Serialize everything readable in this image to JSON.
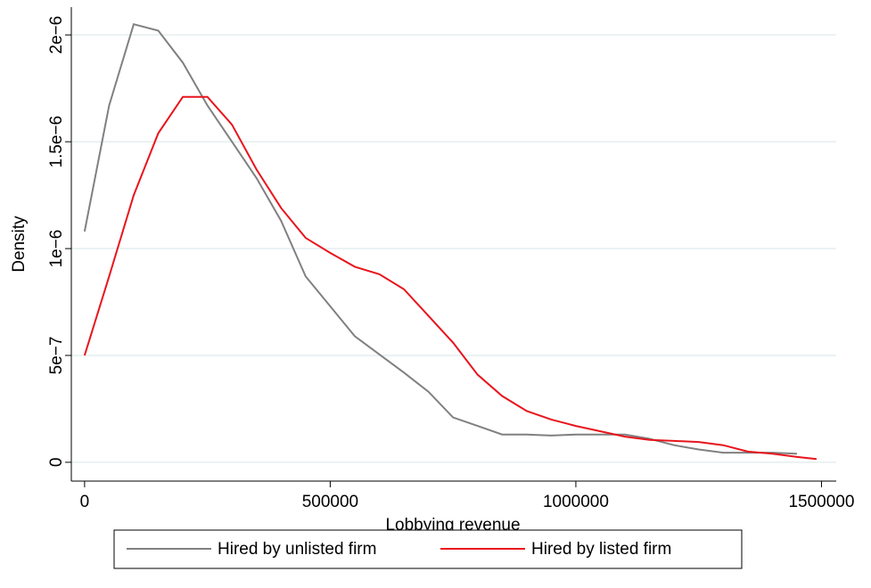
{
  "chart_data": {
    "type": "line",
    "xlabel": "Lobbying revenue",
    "ylabel": "Density",
    "x": [
      0,
      50000,
      100000,
      150000,
      200000,
      250000,
      300000,
      350000,
      400000,
      450000,
      500000,
      550000,
      600000,
      650000,
      700000,
      750000,
      800000,
      850000,
      900000,
      950000,
      1000000,
      1050000,
      1100000,
      1150000,
      1200000,
      1250000,
      1300000,
      1350000,
      1400000,
      1450000,
      1490000
    ],
    "series": [
      {
        "name": "Hired by unlisted firm",
        "color": "#808080",
        "values": [
          1.08e-06,
          1.67e-06,
          2.05e-06,
          2.02e-06,
          1.87e-06,
          1.67e-06,
          1.5e-06,
          1.33e-06,
          1.13e-06,
          8.7e-07,
          7.3e-07,
          5.9e-07,
          5.05e-07,
          4.2e-07,
          3.3e-07,
          2.1e-07,
          1.7e-07,
          1.3e-07,
          1.3e-07,
          1.25e-07,
          1.3e-07,
          1.3e-07,
          1.3e-07,
          1.1e-07,
          8e-08,
          6e-08,
          4.5e-08,
          4.5e-08,
          4.5e-08,
          4e-08,
          null
        ]
      },
      {
        "name": "Hired by listed firm",
        "color": "#e8141c",
        "values": [
          5e-07,
          8.7e-07,
          1.25e-06,
          1.54e-06,
          1.71e-06,
          1.71e-06,
          1.58e-06,
          1.37e-06,
          1.19e-06,
          1.05e-06,
          9.8e-07,
          9.15e-07,
          8.8e-07,
          8.1e-07,
          6.85e-07,
          5.6e-07,
          4.1e-07,
          3.1e-07,
          2.4e-07,
          2e-07,
          1.7e-07,
          1.45e-07,
          1.2e-07,
          1.05e-07,
          1e-07,
          9.5e-08,
          8e-08,
          5e-08,
          4e-08,
          2.5e-08,
          1.5e-08
        ]
      }
    ],
    "xlim": [
      -27000,
      1530000
    ],
    "ylim": [
      -8.8e-08,
      2.13e-06
    ],
    "xticks": [
      0,
      500000,
      1000000,
      1500000
    ],
    "yticks": [
      0,
      {
        "value": 5e-07,
        "label": "5e−7"
      },
      {
        "value": 1e-06,
        "label": "1e−6"
      },
      {
        "value": 1.5e-06,
        "label": "1.5e−6"
      },
      {
        "value": 2e-06,
        "label": "2e−6"
      }
    ],
    "grid": true,
    "legend": "bottom"
  }
}
